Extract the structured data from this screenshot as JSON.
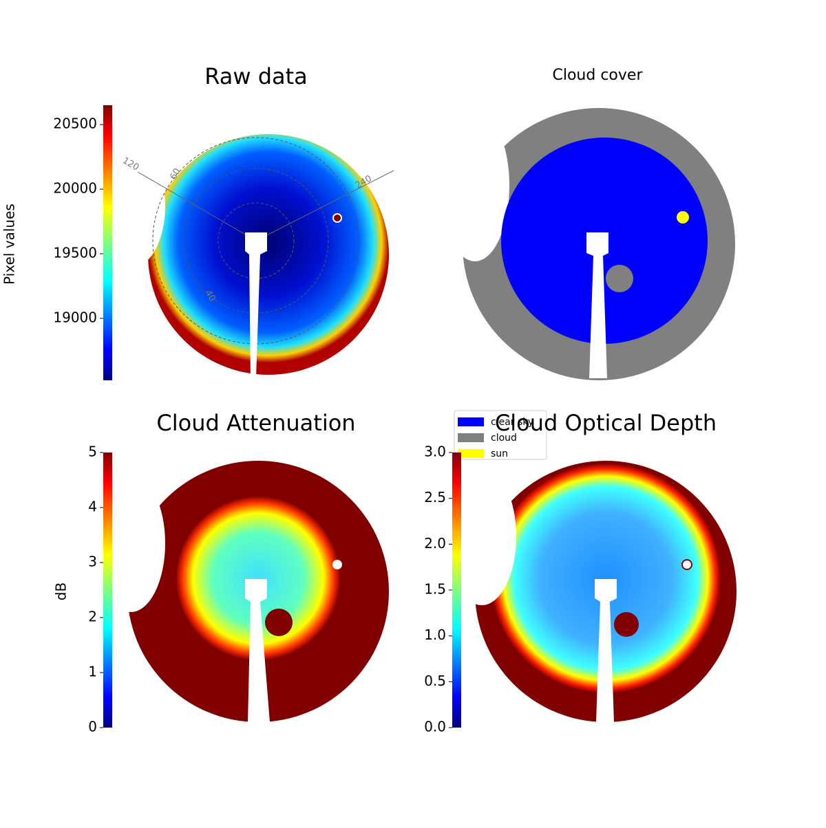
{
  "chart_data": [
    {
      "type": "image",
      "title": "Raw data",
      "colorbar_label": "Pixel values",
      "clim": [
        18520,
        20650
      ],
      "ticks": [
        19000,
        19500,
        20000,
        20500
      ],
      "annotations": [
        "120",
        "60",
        "240",
        "40"
      ]
    },
    {
      "type": "image",
      "title": "Cloud cover",
      "legend": [
        {
          "name": "clear sky",
          "color": "#0000ff"
        },
        {
          "name": "cloud",
          "color": "#808080"
        },
        {
          "name": "sun",
          "color": "#ffff00"
        }
      ]
    },
    {
      "type": "image",
      "title": "Cloud Attenuation",
      "colorbar_label": "dB",
      "clim": [
        0,
        5
      ],
      "ticks": [
        0,
        1,
        2,
        3,
        4,
        5
      ]
    },
    {
      "type": "image",
      "title": "Cloud Optical Depth",
      "clim": [
        0,
        3
      ],
      "ticks": [
        {
          "value": 0,
          "label": "0.0"
        },
        0.5,
        {
          "value": 1,
          "label": "1.0"
        },
        1.5,
        {
          "value": 2,
          "label": "2.0"
        },
        2.5,
        {
          "value": 3,
          "label": "3.0"
        }
      ]
    }
  ]
}
